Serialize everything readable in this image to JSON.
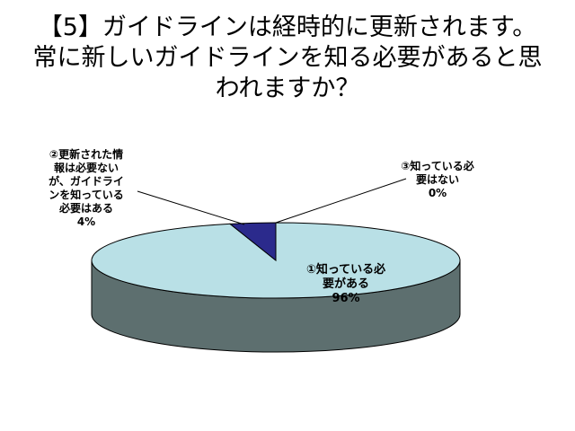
{
  "chart_data": {
    "type": "pie",
    "title_lines": [
      "【5】ガイドラインは経時的に更新されます。",
      "常に新しいガイドラインを知る必要があると思",
      "われますか？"
    ],
    "slices": [
      {
        "label_lines": [
          "①知っている必",
          "要がある"
        ],
        "value": 96,
        "value_label": "96%",
        "color": "#b9e0e6"
      },
      {
        "label_lines": [
          "②更新された情",
          "報は必要ない",
          "が、ガイドライ",
          "ンを知っている",
          "必要はある"
        ],
        "value": 4,
        "value_label": "4%",
        "color": "#2b2a8c"
      },
      {
        "label_lines": [
          "③知っている必",
          "要はない"
        ],
        "value": 0,
        "value_label": "0%",
        "color": "#ffffff"
      }
    ],
    "side_color": "#5d6f6f",
    "style": "3d"
  }
}
